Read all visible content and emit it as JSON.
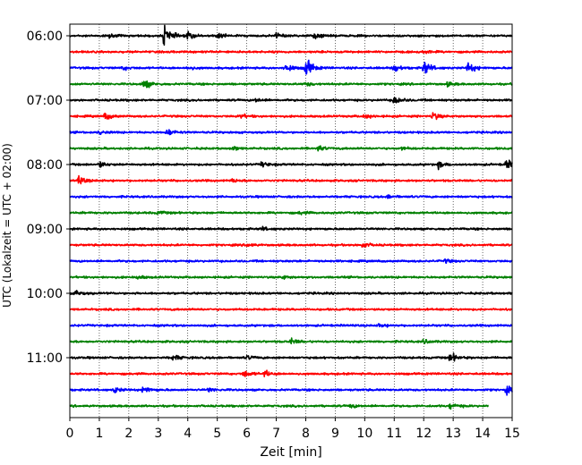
{
  "chart_data": {
    "type": "line",
    "title": "",
    "xlabel": "Zeit  [min]",
    "ylabel": "UTC (Lokalzeit = UTC + 02:00)",
    "xlim": [
      0,
      15
    ],
    "x_ticks": [
      "0",
      "1",
      "2",
      "3",
      "4",
      "5",
      "6",
      "7",
      "8",
      "9",
      "10",
      "11",
      "12",
      "13",
      "14",
      "15"
    ],
    "y_tick_labels": [
      "06:00",
      "07:00",
      "08:00",
      "09:00",
      "10:00",
      "11:00"
    ],
    "grid": "vertical dotted",
    "trace_count": 24,
    "trace_colors": [
      "#000000",
      "#ff0000",
      "#0000ff",
      "#008000"
    ],
    "traces": [
      {
        "row": 0,
        "color": "#000000",
        "events": [
          [
            1.3,
            3
          ],
          [
            3.2,
            18
          ],
          [
            4.0,
            6
          ],
          [
            5.0,
            5
          ],
          [
            7.0,
            4
          ],
          [
            8.3,
            5
          ]
        ]
      },
      {
        "row": 1,
        "color": "#ff0000",
        "events": [
          [
            12.0,
            3
          ]
        ]
      },
      {
        "row": 2,
        "color": "#0000ff",
        "events": [
          [
            1.8,
            3
          ],
          [
            4.0,
            3
          ],
          [
            7.3,
            9
          ],
          [
            8.0,
            17
          ],
          [
            11.0,
            7
          ],
          [
            12.0,
            13
          ],
          [
            13.5,
            10
          ]
        ]
      },
      {
        "row": 3,
        "color": "#008000",
        "events": [
          [
            2.5,
            9
          ],
          [
            8.0,
            3
          ],
          [
            12.8,
            3
          ]
        ]
      },
      {
        "row": 4,
        "color": "#000000",
        "events": [
          [
            11.0,
            8
          ],
          [
            6.3,
            3
          ]
        ]
      },
      {
        "row": 5,
        "color": "#ff0000",
        "events": [
          [
            1.2,
            6
          ],
          [
            5.8,
            3
          ],
          [
            10.0,
            4
          ],
          [
            12.3,
            7
          ]
        ]
      },
      {
        "row": 6,
        "color": "#0000ff",
        "events": [
          [
            3.3,
            6
          ],
          [
            1.0,
            3
          ]
        ]
      },
      {
        "row": 7,
        "color": "#008000",
        "events": [
          [
            8.4,
            5
          ],
          [
            11.2,
            3
          ],
          [
            5.5,
            3
          ]
        ]
      },
      {
        "row": 8,
        "color": "#000000",
        "events": [
          [
            1.0,
            5
          ],
          [
            6.5,
            4
          ],
          [
            12.5,
            5
          ],
          [
            14.8,
            8
          ]
        ]
      },
      {
        "row": 9,
        "color": "#ff0000",
        "events": [
          [
            0.3,
            7
          ],
          [
            5.5,
            3
          ]
        ]
      },
      {
        "row": 10,
        "color": "#0000ff",
        "events": [
          [
            10.8,
            3
          ]
        ]
      },
      {
        "row": 11,
        "color": "#008000",
        "events": [
          [
            3.0,
            3
          ],
          [
            7.8,
            3
          ]
        ]
      },
      {
        "row": 12,
        "color": "#000000",
        "events": [
          [
            6.5,
            3
          ]
        ]
      },
      {
        "row": 13,
        "color": "#ff0000",
        "events": [
          [
            9.9,
            5
          ],
          [
            6.0,
            3
          ]
        ]
      },
      {
        "row": 14,
        "color": "#0000ff",
        "events": [
          [
            12.7,
            3
          ]
        ]
      },
      {
        "row": 15,
        "color": "#008000",
        "events": [
          [
            2.3,
            3
          ],
          [
            7.2,
            3
          ]
        ]
      },
      {
        "row": 16,
        "color": "#000000",
        "events": [
          [
            0.2,
            5
          ]
        ]
      },
      {
        "row": 17,
        "color": "#ff0000",
        "events": []
      },
      {
        "row": 18,
        "color": "#0000ff",
        "events": [
          [
            10.5,
            3
          ]
        ]
      },
      {
        "row": 19,
        "color": "#008000",
        "events": [
          [
            7.5,
            5
          ],
          [
            12.0,
            3
          ]
        ]
      },
      {
        "row": 20,
        "color": "#000000",
        "events": [
          [
            3.5,
            5
          ],
          [
            12.9,
            8
          ],
          [
            6.0,
            3
          ]
        ]
      },
      {
        "row": 21,
        "color": "#ff0000",
        "events": [
          [
            5.9,
            6
          ],
          [
            6.6,
            5
          ]
        ]
      },
      {
        "row": 22,
        "color": "#0000ff",
        "events": [
          [
            1.5,
            5
          ],
          [
            2.5,
            7
          ],
          [
            4.7,
            3
          ],
          [
            14.8,
            6
          ]
        ]
      },
      {
        "row": 23,
        "color": "#008000",
        "events": [
          [
            9.5,
            3
          ],
          [
            12.9,
            5
          ]
        ],
        "x_end": 14.2
      }
    ]
  }
}
